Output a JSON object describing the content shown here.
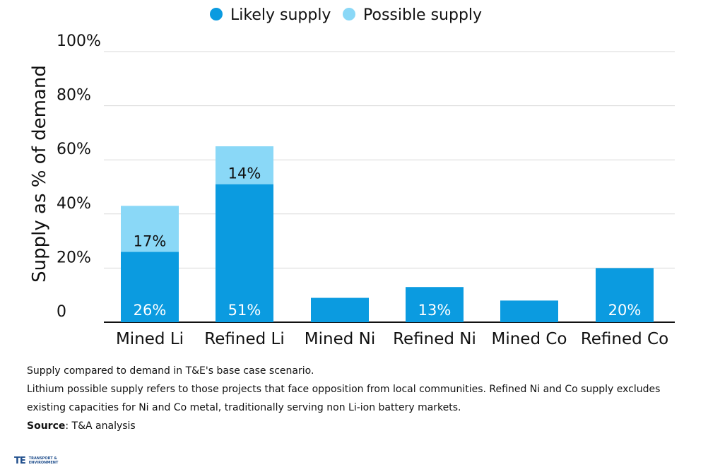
{
  "chart_data": {
    "type": "bar",
    "stacked": true,
    "categories": [
      "Mined Li",
      "Refined Li",
      "Mined Ni",
      "Refined Ni",
      "Mined Co",
      "Refined Co"
    ],
    "series": [
      {
        "name": "Likely supply",
        "color": "#0b9be0",
        "values": [
          26,
          51,
          9,
          13,
          8,
          20
        ],
        "labels": [
          "26%",
          "51%",
          "",
          "13%",
          "",
          "20%"
        ]
      },
      {
        "name": "Possible supply",
        "color": "#8ad8f7",
        "values": [
          17,
          14,
          0,
          0,
          0,
          0
        ],
        "labels": [
          "17%",
          "14%",
          "",
          "",
          "",
          ""
        ]
      }
    ],
    "ylabel": "Supply as % of demand",
    "ylim": [
      0,
      100
    ],
    "yticks": [
      0,
      20,
      40,
      60,
      80,
      100
    ],
    "ytick_labels": [
      "0",
      "20%",
      "40%",
      "60%",
      "80%",
      "100%"
    ],
    "grid": true,
    "legend_position": "top-center"
  },
  "footnotes": {
    "line1": "Supply compared to demand in T&E's base case scenario.",
    "line2": "Lithium possible supply refers to those projects that face opposition from local communities. Refined Ni and Co supply excludes existing capacities for Ni and Co metal, traditionally serving non Li-ion battery markets.",
    "source_label": "Source",
    "source_text": ": T&A analysis"
  },
  "logo": {
    "mark": "TE",
    "text": "TRANSPORT & ENVIRONMENT"
  },
  "colors": {
    "grid": "#d9d9d9",
    "axis": "#111111"
  }
}
